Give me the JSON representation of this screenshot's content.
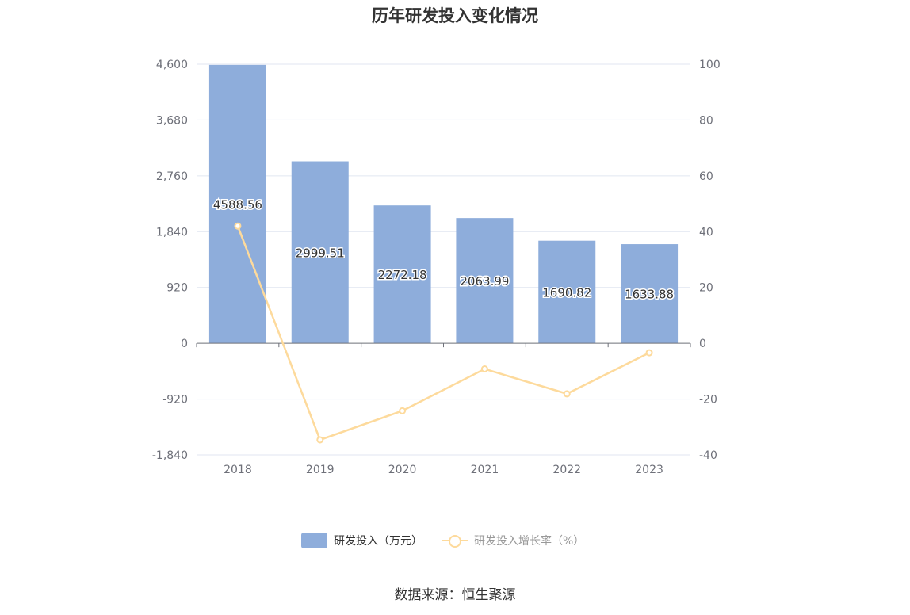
{
  "chart_data": {
    "type": "bar",
    "title": "历年研发投入变化情况",
    "categories": [
      "2018",
      "2019",
      "2020",
      "2021",
      "2022",
      "2023"
    ],
    "series": [
      {
        "name": "研发投入（万元）",
        "type": "bar",
        "axis": "left",
        "values": [
          4588.56,
          2999.51,
          2272.18,
          2063.99,
          1690.82,
          1633.88
        ],
        "labels": [
          "4588.56",
          "2999.51",
          "2272.18",
          "2063.99",
          "1690.82",
          "1633.88"
        ],
        "color": "#8eaddb"
      },
      {
        "name": "研发投入增长率（%）",
        "type": "line",
        "axis": "right",
        "values": [
          42,
          -34.6,
          -24.2,
          -9.2,
          -18.1,
          -3.4
        ],
        "color": "#fdda9c"
      }
    ],
    "left_axis": {
      "ylim": [
        -1840,
        4600
      ],
      "ticks": [
        4600,
        3680,
        2760,
        1840,
        920,
        0,
        -920,
        -1840
      ],
      "tick_labels": [
        "4,600",
        "3,680",
        "2,760",
        "1,840",
        "920",
        "0",
        "-920",
        "-1,840"
      ]
    },
    "right_axis": {
      "ylim": [
        -40,
        100
      ],
      "ticks": [
        100,
        80,
        60,
        40,
        20,
        0,
        -20,
        -40
      ],
      "tick_labels": [
        "100",
        "80",
        "60",
        "40",
        "20",
        "0",
        "-20",
        "-40"
      ]
    },
    "grid": true,
    "legend_position": "bottom",
    "source": "数据来源：恒生聚源"
  }
}
